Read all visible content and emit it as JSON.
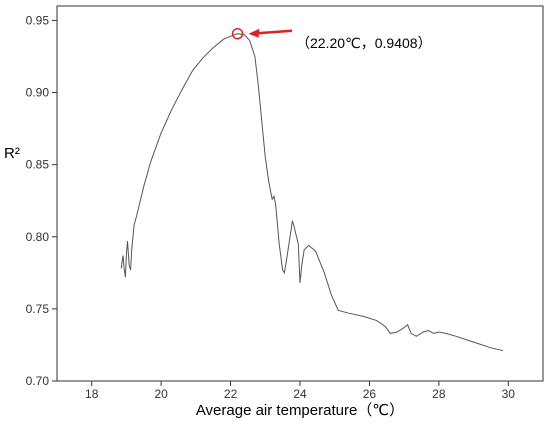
{
  "chart_data": {
    "type": "line",
    "xlabel": "Average air temperature（℃）",
    "ylabel": "R²",
    "xlim": [
      17,
      31
    ],
    "ylim": [
      0.7,
      0.96
    ],
    "x_ticks": [
      18,
      20,
      22,
      24,
      26,
      28,
      30
    ],
    "y_ticks": [
      0.7,
      0.75,
      0.8,
      0.85,
      0.9,
      0.95
    ],
    "x_tick_labels": [
      "18",
      "20",
      "22",
      "24",
      "26",
      "28",
      "30"
    ],
    "y_tick_labels": [
      "0.70",
      "0.75",
      "0.80",
      "0.85",
      "0.90",
      "0.95"
    ],
    "grid": false,
    "line_color": "#555555",
    "series": [
      {
        "points": [
          [
            18.85,
            0.778
          ],
          [
            18.9,
            0.787
          ],
          [
            18.93,
            0.779
          ],
          [
            18.97,
            0.772
          ],
          [
            19.0,
            0.788
          ],
          [
            19.03,
            0.797
          ],
          [
            19.08,
            0.78
          ],
          [
            19.12,
            0.777
          ],
          [
            19.15,
            0.79
          ],
          [
            19.22,
            0.808
          ],
          [
            19.3,
            0.815
          ],
          [
            19.5,
            0.835
          ],
          [
            19.7,
            0.852
          ],
          [
            20.0,
            0.872
          ],
          [
            20.3,
            0.888
          ],
          [
            20.6,
            0.902
          ],
          [
            20.9,
            0.915
          ],
          [
            21.2,
            0.924
          ],
          [
            21.5,
            0.931
          ],
          [
            21.8,
            0.937
          ],
          [
            22.0,
            0.939
          ],
          [
            22.2,
            0.9408
          ],
          [
            22.4,
            0.94
          ],
          [
            22.55,
            0.936
          ],
          [
            22.7,
            0.925
          ],
          [
            22.8,
            0.905
          ],
          [
            22.9,
            0.88
          ],
          [
            23.0,
            0.855
          ],
          [
            23.1,
            0.838
          ],
          [
            23.2,
            0.826
          ],
          [
            23.25,
            0.828
          ],
          [
            23.3,
            0.822
          ],
          [
            23.4,
            0.795
          ],
          [
            23.5,
            0.777
          ],
          [
            23.55,
            0.775
          ],
          [
            23.6,
            0.782
          ],
          [
            23.7,
            0.798
          ],
          [
            23.78,
            0.811
          ],
          [
            23.82,
            0.808
          ],
          [
            23.88,
            0.802
          ],
          [
            23.95,
            0.795
          ],
          [
            24.0,
            0.768
          ],
          [
            24.05,
            0.78
          ],
          [
            24.12,
            0.791
          ],
          [
            24.25,
            0.794
          ],
          [
            24.45,
            0.79
          ],
          [
            24.7,
            0.775
          ],
          [
            24.9,
            0.76
          ],
          [
            25.1,
            0.749
          ],
          [
            25.4,
            0.747
          ],
          [
            25.8,
            0.745
          ],
          [
            26.2,
            0.742
          ],
          [
            26.45,
            0.738
          ],
          [
            26.6,
            0.733
          ],
          [
            26.8,
            0.734
          ],
          [
            27.0,
            0.737
          ],
          [
            27.1,
            0.739
          ],
          [
            27.2,
            0.733
          ],
          [
            27.35,
            0.731
          ],
          [
            27.55,
            0.734
          ],
          [
            27.7,
            0.735
          ],
          [
            27.85,
            0.733
          ],
          [
            28.0,
            0.734
          ],
          [
            28.2,
            0.733
          ],
          [
            28.5,
            0.731
          ],
          [
            29.0,
            0.727
          ],
          [
            29.5,
            0.723
          ],
          [
            29.85,
            0.721
          ]
        ]
      }
    ],
    "annotation": {
      "x": 22.2,
      "y": 0.9408,
      "text": "（22.20℃，0.9408）",
      "color": "#e02020"
    }
  }
}
